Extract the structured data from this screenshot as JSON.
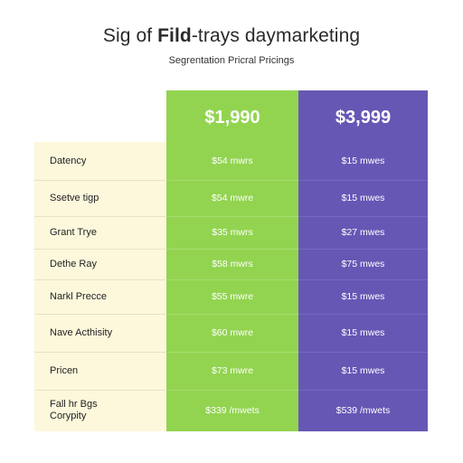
{
  "header": {
    "title_prefix": "Sig of ",
    "title_bold": "Fild",
    "title_suffix": "-trays daymarketing",
    "subtitle": "Segrentation Pricral Pricings"
  },
  "plans": [
    {
      "price": "$1,990",
      "color": "#92d450",
      "cells": [
        "$54 mwrs",
        "$54 mwre",
        "$35 mwrs",
        "$58 mwrs",
        "$55 mwre",
        "$60 mwre",
        "$73 mwre",
        "$339 /mwets"
      ]
    },
    {
      "price": "$3,999",
      "color": "#6657b5",
      "cells": [
        "$15 mwes",
        "$15 mwes",
        "$27 mwes",
        "$75 mwes",
        "$15 mwes",
        "$15 mwes",
        "$15 mwes",
        "$539 /mwets"
      ]
    }
  ],
  "rows": [
    "Datency",
    "Ssetve tigp",
    "Grant Trye",
    "Dethe Ray",
    "Narkl Precce",
    "Nave Acthisity",
    "Pricen",
    "Fall hr Bgs\nCorypity"
  ]
}
